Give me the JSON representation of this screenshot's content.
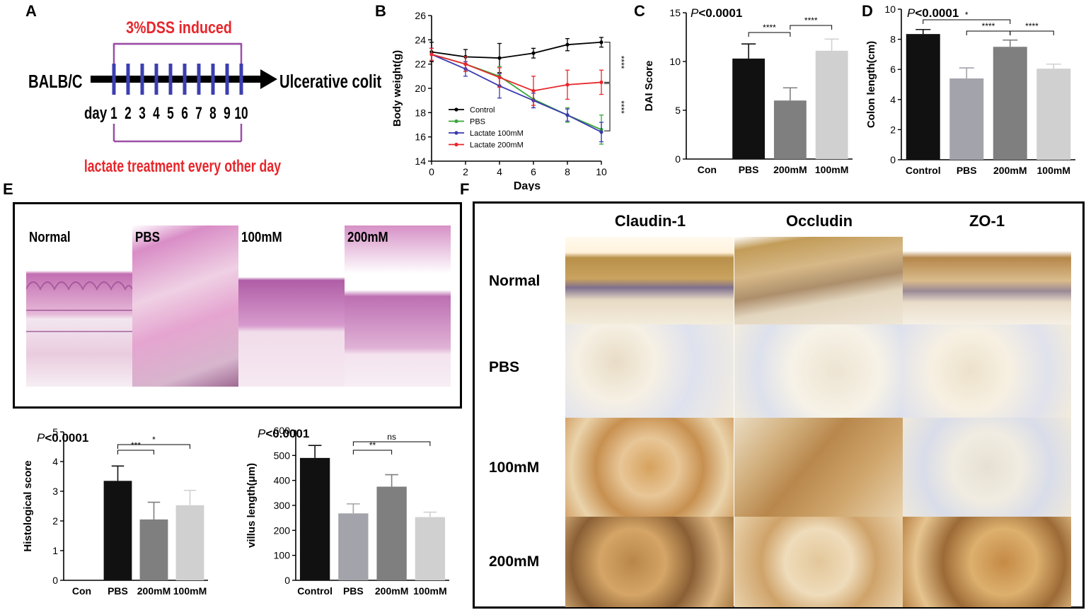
{
  "panels": {
    "a": "A",
    "b": "B",
    "c": "C",
    "d": "D",
    "e": "E",
    "f": "F"
  },
  "panelA": {
    "start": "BALB/C",
    "end": "Ulcerative colitis",
    "top_label": "3%DSS induced",
    "bottom_label": "lactate treatment every other day",
    "day_label": "day",
    "days": [
      "1",
      "2",
      "3",
      "4",
      "5",
      "6",
      "7",
      "8",
      "9",
      "10"
    ],
    "accent": "#e8262b",
    "bracket_color": "#9b4fa6",
    "tick_color": "#3c3fb0"
  },
  "chart_data": [
    {
      "id": "B",
      "type": "line",
      "xlabel": "Days",
      "ylabel": "Body weight(g)",
      "xlim": [
        0,
        10
      ],
      "ylim": [
        14,
        26
      ],
      "xticks": [
        0,
        2,
        4,
        6,
        8,
        10
      ],
      "yticks": [
        14,
        16,
        18,
        20,
        22,
        24,
        26
      ],
      "legend_position": "bottom-left",
      "series": [
        {
          "name": "Control",
          "color": "#000000",
          "marker": "circle",
          "x": [
            0,
            2,
            4,
            6,
            8,
            10
          ],
          "y": [
            23.0,
            22.6,
            22.5,
            22.9,
            23.6,
            23.8
          ],
          "err": [
            0.8,
            0.6,
            1.2,
            0.4,
            0.5,
            0.4
          ]
        },
        {
          "name": "PBS",
          "color": "#3aa63a",
          "marker": "square",
          "x": [
            0,
            2,
            4,
            6,
            8,
            10
          ],
          "y": [
            22.8,
            22.0,
            21.0,
            19.1,
            17.8,
            16.6
          ],
          "err": [
            0.5,
            0.6,
            0.8,
            0.7,
            0.6,
            1.2
          ]
        },
        {
          "name": "Lactate 100mM",
          "color": "#3a3ab0",
          "marker": "triangle",
          "x": [
            0,
            2,
            4,
            6,
            8,
            10
          ],
          "y": [
            22.8,
            21.6,
            20.2,
            19.0,
            17.8,
            16.4
          ],
          "err": [
            0.5,
            0.6,
            1.0,
            0.6,
            0.5,
            0.8
          ]
        },
        {
          "name": "Lactate 200mM",
          "color": "#e8262b",
          "marker": "triangle-down",
          "x": [
            0,
            2,
            4,
            6,
            8,
            10
          ],
          "y": [
            22.8,
            22.0,
            20.9,
            19.8,
            20.3,
            20.5
          ],
          "err": [
            0.5,
            0.6,
            0.8,
            1.2,
            1.2,
            1.0
          ]
        }
      ],
      "annotations": [
        "****",
        "****"
      ]
    },
    {
      "id": "C",
      "type": "bar",
      "ylabel": "DAI Score",
      "ylim": [
        0,
        15
      ],
      "yticks": [
        0,
        5,
        10,
        15
      ],
      "categories": [
        "Con",
        "PBS",
        "200mM",
        "100mM"
      ],
      "values": [
        0,
        10.3,
        6.0,
        11.1
      ],
      "errors": [
        0,
        1.5,
        1.3,
        1.2
      ],
      "colors": [
        "#111111",
        "#111111",
        "#7f7f7f",
        "#d0d0d0"
      ],
      "pvalue_prefix": "P",
      "pvalue_text": "<0.0001",
      "significance": [
        {
          "from": 1,
          "to": 2,
          "label": "****"
        },
        {
          "from": 2,
          "to": 3,
          "label": "****"
        }
      ]
    },
    {
      "id": "D",
      "type": "bar",
      "ylabel": "Colon length(cm)",
      "ylim": [
        0,
        10
      ],
      "yticks": [
        0,
        2,
        4,
        6,
        8,
        10
      ],
      "categories": [
        "Control",
        "PBS",
        "200mM",
        "100mM"
      ],
      "values": [
        8.35,
        5.4,
        7.5,
        6.05
      ],
      "errors": [
        0.3,
        0.7,
        0.45,
        0.3
      ],
      "colors": [
        "#111111",
        "#a3a3ab",
        "#7f7f7f",
        "#d0d0d0"
      ],
      "pvalue_prefix": "P",
      "pvalue_text": "<0.0001",
      "significance": [
        {
          "from": 0,
          "to": 2,
          "label": "*"
        },
        {
          "from": 1,
          "to": 2,
          "label": "****"
        },
        {
          "from": 2,
          "to": 3,
          "label": "****"
        }
      ]
    },
    {
      "id": "E-hist",
      "type": "bar",
      "ylabel": "Histological score",
      "ylim": [
        0,
        5
      ],
      "yticks": [
        0,
        1,
        2,
        3,
        4,
        5
      ],
      "categories": [
        "Con",
        "PBS",
        "200mM",
        "100mM"
      ],
      "values": [
        0,
        3.35,
        2.05,
        2.53
      ],
      "errors": [
        0,
        0.5,
        0.58,
        0.5
      ],
      "colors": [
        "#111111",
        "#111111",
        "#7f7f7f",
        "#d0d0d0"
      ],
      "pvalue_prefix": "P",
      "pvalue_text": "<0.0001",
      "significance": [
        {
          "from": 1,
          "to": 2,
          "label": "***"
        },
        {
          "from": 1,
          "to": 3,
          "label": "*"
        }
      ]
    },
    {
      "id": "E-villus",
      "type": "bar",
      "ylabel": "villus length(μm)",
      "ylim": [
        0,
        600
      ],
      "yticks": [
        0,
        100,
        200,
        300,
        400,
        500,
        600
      ],
      "categories": [
        "Control",
        "PBS",
        "200mM",
        "100mM"
      ],
      "values": [
        490,
        268,
        375,
        253
      ],
      "errors": [
        50,
        38,
        48,
        20
      ],
      "colors": [
        "#111111",
        "#a3a3ab",
        "#7f7f7f",
        "#d0d0d0"
      ],
      "pvalue_prefix": "P",
      "pvalue_text": "<0.0001",
      "significance": [
        {
          "from": 1,
          "to": 2,
          "label": "**"
        },
        {
          "from": 1,
          "to": 3,
          "label": "ns"
        }
      ]
    }
  ],
  "panelE_images": {
    "labels": [
      "Normal",
      "PBS",
      "100mM",
      "200mM"
    ]
  },
  "panelF": {
    "columns": [
      "Claudin-1",
      "Occludin",
      "ZO-1"
    ],
    "rows": [
      "Normal",
      "PBS",
      "100mM",
      "200mM"
    ]
  }
}
